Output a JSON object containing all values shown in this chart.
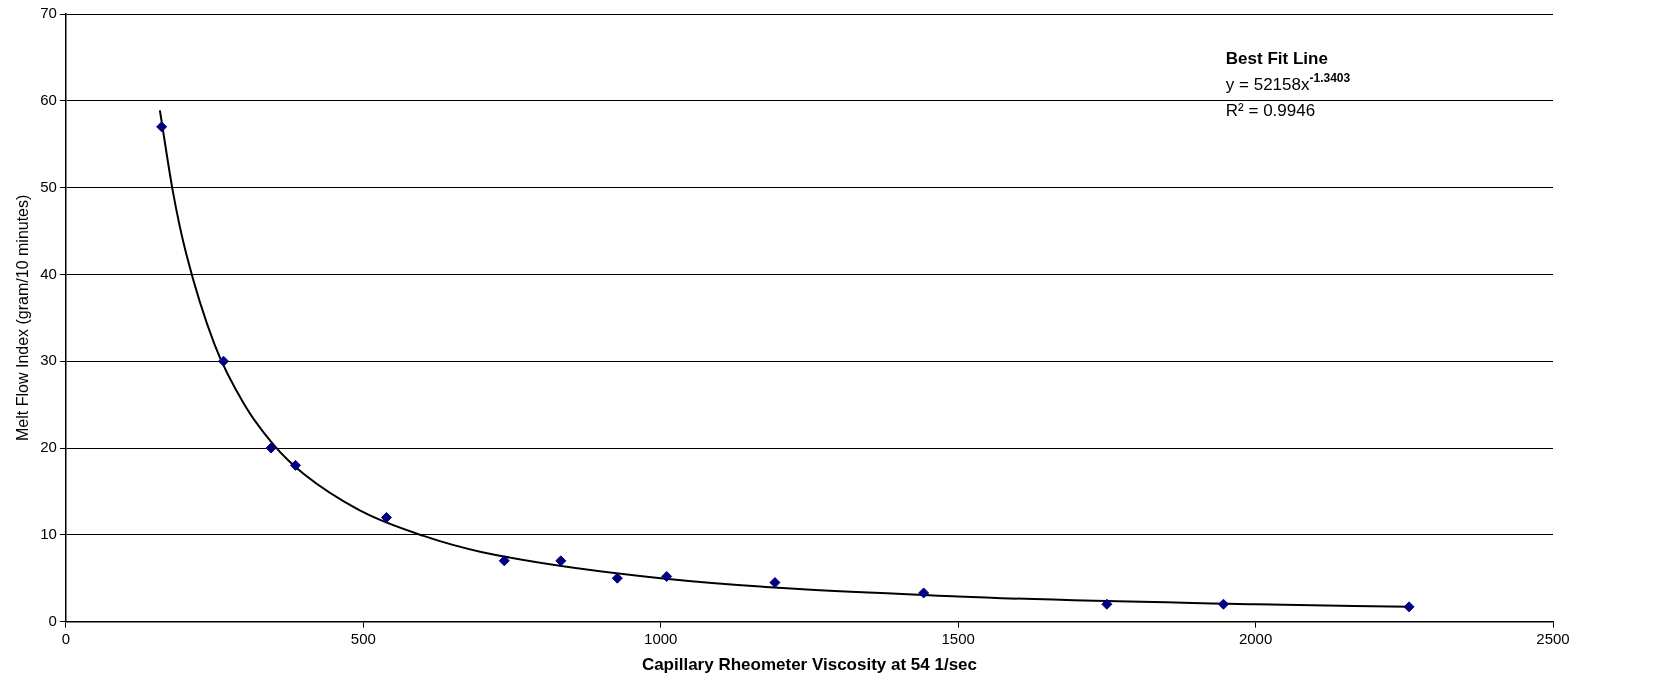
{
  "chart_data": {
    "type": "scatter",
    "xlabel": "Capillary Rheometer Viscosity at 54 1/sec",
    "ylabel": "Melt Flow Index (gram/10 minutes)",
    "xlim": [
      0,
      2500
    ],
    "xticks": [
      0,
      500,
      1000,
      1500,
      2000,
      2500
    ],
    "ylim": [
      0,
      70
    ],
    "yticks": [
      0,
      10,
      20,
      30,
      40,
      50,
      60,
      70
    ],
    "grid": "y",
    "legend": false,
    "marker": "diamond",
    "series": [
      {
        "color": "#000080",
        "x": [
          161,
          265,
          345,
          386,
          539,
          737,
          832,
          927,
          1010,
          1192,
          1442,
          1750,
          1946,
          2258
        ],
        "values": [
          57,
          30,
          20,
          18,
          12,
          7,
          7,
          5,
          5.2,
          4.5,
          3.3,
          2,
          2,
          1.7
        ]
      },
      {
        "type": "line",
        "color": "#000000",
        "marker": "none",
        "x": [
          158,
          180,
          200,
          250,
          300,
          350,
          400,
          500,
          600,
          700,
          1000,
          1500,
          2000,
          2258
        ],
        "values": [
          58.9,
          49.5,
          43,
          31.9,
          25,
          20.3,
          17,
          12.6,
          9.9,
          8,
          5,
          2.9,
          2,
          1.7
        ]
      }
    ],
    "annotations": [
      "Best Fit Line",
      "y = 52158x$^{-1.3403}$",
      "R² = 0.9946"
    ]
  }
}
